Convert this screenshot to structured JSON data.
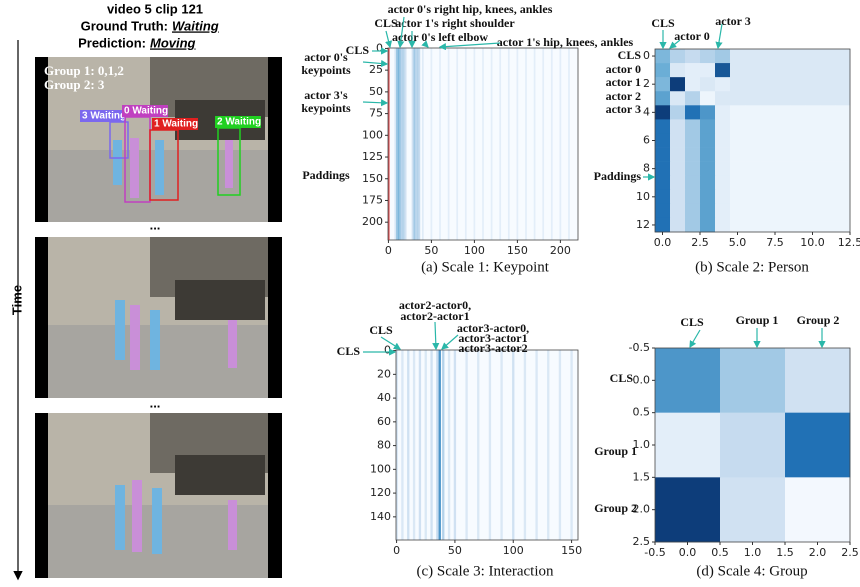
{
  "header": {
    "title": "video 5 clip 121",
    "truth_label": "Ground Truth:",
    "truth": "Waiting",
    "prediction_label": "Prediction:",
    "prediction": "Moving"
  },
  "time_label": "Time",
  "ellipses": [
    "...",
    "..."
  ],
  "groups": [
    "Group 1: 0,1,2",
    "Group 2: 3"
  ],
  "boxes": [
    {
      "label": "3 Waiting",
      "color": "#7b68ee"
    },
    {
      "label": "0 Waiting",
      "color": "#c040c0"
    },
    {
      "label": "1 Waiting",
      "color": "#e02020"
    },
    {
      "label": "2 Waiting",
      "color": "#20d020"
    }
  ],
  "chart_data": [
    {
      "type": "stripes",
      "caption": "(a) Scale 1: Keypoint",
      "annotations": [
        "actor 0's right hip, knees, ankles",
        "actor 1's right shoulder",
        "CLS",
        "actor 0's left elbow",
        "actor 1's hip, knees, ankles",
        "CLS",
        "actor 0's",
        "keypoints",
        "actor 3's",
        "keypoints",
        "Paddings"
      ],
      "x": [
        0,
        8,
        10,
        12,
        14,
        16,
        18,
        20,
        28,
        30,
        32,
        34,
        36,
        40,
        50,
        60,
        70,
        80,
        90,
        100,
        110,
        120,
        130,
        140,
        150,
        160,
        170,
        180,
        190,
        200,
        210
      ],
      "values": [
        0.3,
        0.15,
        0.4,
        0.45,
        0.35,
        0.3,
        0.3,
        0.2,
        0.2,
        0.35,
        0.3,
        0.3,
        0.25,
        0.12,
        0.1,
        0.1,
        0.1,
        0.1,
        0.1,
        0.1,
        0.1,
        0.1,
        0.1,
        0.1,
        0.1,
        0.1,
        0.1,
        0.1,
        0.1,
        0.1,
        0.1
      ],
      "xlim": [
        -0.5,
        220.5
      ],
      "ylim": [
        -0.5,
        220.5
      ],
      "xticks": [
        0,
        50,
        100,
        150,
        200
      ],
      "yticks": [
        0,
        25,
        50,
        75,
        100,
        125,
        150,
        175,
        200
      ]
    },
    {
      "type": "heatmap",
      "caption": "(b) Scale 2: Person",
      "annotations": [
        "CLS",
        "actor 0",
        "actor 3",
        "CLS",
        "actor 0",
        "actor 1",
        "actor 2",
        "actor 3",
        "Paddings"
      ],
      "values": [
        [
          0.45,
          0.3,
          0.25,
          0.3,
          0.35,
          0.15,
          0.15,
          0.15,
          0.15,
          0.15,
          0.15,
          0.15,
          0.15
        ],
        [
          0.5,
          0.15,
          0.1,
          0.1,
          0.85,
          0.15,
          0.15,
          0.15,
          0.15,
          0.15,
          0.15,
          0.15,
          0.15
        ],
        [
          0.45,
          0.95,
          0.1,
          0.15,
          0.1,
          0.15,
          0.15,
          0.15,
          0.15,
          0.15,
          0.15,
          0.15,
          0.15
        ],
        [
          0.55,
          0.15,
          0.3,
          0.05,
          0.15,
          0.15,
          0.15,
          0.15,
          0.15,
          0.15,
          0.15,
          0.15,
          0.15
        ],
        [
          0.95,
          0.3,
          0.75,
          0.6,
          0.1,
          0.05,
          0.05,
          0.05,
          0.05,
          0.05,
          0.05,
          0.05,
          0.05
        ],
        [
          0.75,
          0.2,
          0.35,
          0.55,
          0.1,
          0.05,
          0.05,
          0.05,
          0.05,
          0.05,
          0.05,
          0.05,
          0.05
        ],
        [
          0.75,
          0.2,
          0.35,
          0.55,
          0.1,
          0.05,
          0.05,
          0.05,
          0.05,
          0.05,
          0.05,
          0.05,
          0.05
        ],
        [
          0.75,
          0.2,
          0.35,
          0.55,
          0.1,
          0.05,
          0.05,
          0.05,
          0.05,
          0.05,
          0.05,
          0.05,
          0.05
        ],
        [
          0.75,
          0.2,
          0.35,
          0.55,
          0.1,
          0.05,
          0.05,
          0.05,
          0.05,
          0.05,
          0.05,
          0.05,
          0.05
        ],
        [
          0.75,
          0.2,
          0.35,
          0.55,
          0.1,
          0.05,
          0.05,
          0.05,
          0.05,
          0.05,
          0.05,
          0.05,
          0.05
        ],
        [
          0.75,
          0.2,
          0.35,
          0.55,
          0.1,
          0.05,
          0.05,
          0.05,
          0.05,
          0.05,
          0.05,
          0.05,
          0.05
        ],
        [
          0.75,
          0.2,
          0.35,
          0.55,
          0.1,
          0.05,
          0.05,
          0.05,
          0.05,
          0.05,
          0.05,
          0.05,
          0.05
        ],
        [
          0.75,
          0.2,
          0.35,
          0.55,
          0.1,
          0.05,
          0.05,
          0.05,
          0.05,
          0.05,
          0.05,
          0.05,
          0.05
        ]
      ],
      "xlim": [
        -0.5,
        12.5
      ],
      "ylim": [
        -0.5,
        12.5
      ],
      "xticks": [
        {
          "value": 0,
          "label": "0.0"
        },
        2.5,
        {
          "value": 5,
          "label": "5.0"
        },
        7.5,
        {
          "value": 10,
          "label": "10.0"
        },
        12.5
      ],
      "yticks": [
        0,
        2,
        4,
        6,
        8,
        10,
        12
      ]
    },
    {
      "type": "stripes",
      "caption": "(c) Scale 3: Interaction",
      "annotations": [
        "actor2-actor0,",
        "actor2-actor1",
        "actor3-actor0,",
        "actor3-actor1",
        "actor3-actor2",
        "CLS",
        "CLS"
      ],
      "x": [
        0,
        5,
        10,
        15,
        20,
        25,
        30,
        35,
        37,
        40,
        45,
        50,
        60,
        70,
        80,
        90,
        100,
        110,
        120,
        130,
        140,
        150
      ],
      "values": [
        0.2,
        0.15,
        0.2,
        0.15,
        0.2,
        0.15,
        0.2,
        0.25,
        0.6,
        0.3,
        0.15,
        0.2,
        0.15,
        0.15,
        0.15,
        0.15,
        0.2,
        0.15,
        0.15,
        0.15,
        0.15,
        0.15
      ],
      "xlim": [
        -0.5,
        155.5
      ],
      "ylim": [
        -0.5,
        159.5
      ],
      "xticks": [
        0,
        50,
        100,
        150
      ],
      "yticks": [
        0,
        20,
        40,
        60,
        80,
        100,
        120,
        140
      ]
    },
    {
      "type": "heatmap",
      "caption": "(d) Scale 4: Group",
      "annotations": [
        "CLS",
        "Group 1",
        "Group 2",
        "CLS",
        "Group 1",
        "Group 2"
      ],
      "values": [
        [
          0.6,
          0.35,
          0.2
        ],
        [
          0.1,
          0.25,
          0.75
        ],
        [
          0.95,
          0.2,
          0.02
        ]
      ],
      "xlim": [
        -0.5,
        2.5
      ],
      "ylim": [
        -0.5,
        2.5
      ],
      "xticks": [
        -0.5,
        {
          "value": 0,
          "label": "0.0"
        },
        0.5,
        {
          "value": 1,
          "label": "1.0"
        },
        1.5,
        {
          "value": 2,
          "label": "2.0"
        },
        2.5
      ],
      "yticks": [
        -0.5,
        {
          "value": 0,
          "label": "0.0"
        },
        0.5,
        {
          "value": 1,
          "label": "1.0"
        },
        1.5,
        {
          "value": 2,
          "label": "2.0"
        },
        2.5
      ]
    }
  ]
}
